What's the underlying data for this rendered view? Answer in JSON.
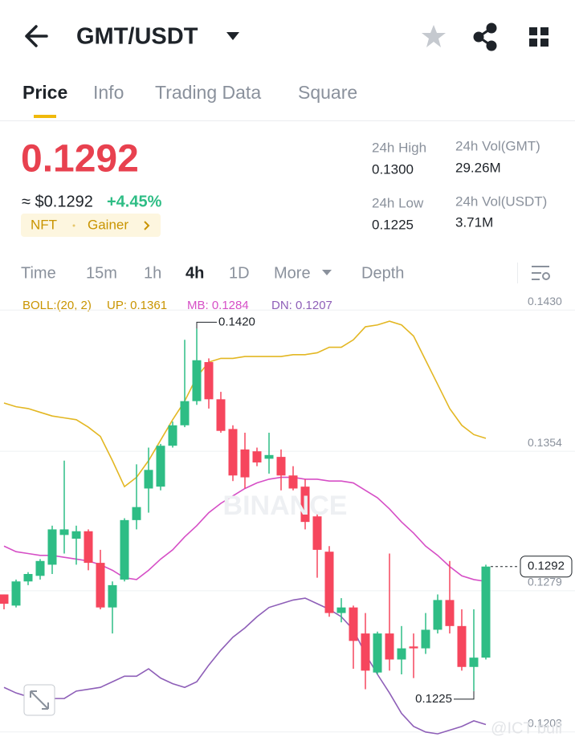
{
  "header": {
    "pair": "GMT/USDT"
  },
  "tabs": [
    "Price",
    "Info",
    "Trading Data",
    "Square"
  ],
  "ticker": {
    "price": "0.1292",
    "fiat": "≈ $0.1292",
    "change": "+4.45%",
    "tags": [
      "NFT",
      "Gainer"
    ]
  },
  "stats": [
    {
      "label": "24h High",
      "value": "0.1300"
    },
    {
      "label": "24h Vol(GMT)",
      "value": "29.26M"
    },
    {
      "label": "24h Low",
      "value": "0.1225"
    },
    {
      "label": "24h Vol(USDT)",
      "value": "3.71M"
    }
  ],
  "intervals": [
    "Time",
    "15m",
    "1h",
    "4h",
    "1D",
    "More",
    "Depth"
  ],
  "watermarks": [
    "BINANCE",
    "@ICT bull"
  ],
  "chart_data": {
    "type": "candlestick",
    "legend": [
      "BOLL:(20, 2)",
      "UP: 0.1361",
      "MB: 0.1284",
      "DN: 0.1207"
    ],
    "up_color": "#2ebd85",
    "down_color": "#f6465d",
    "open": [
      0.1277,
      0.1271,
      0.1284,
      0.1287,
      0.1293,
      0.1309,
      0.1307,
      0.1311,
      0.1294,
      0.127,
      0.1285,
      0.1317,
      0.1334,
      0.1335,
      0.1357,
      0.1368,
      0.1381,
      0.1402,
      0.1382,
      0.1366,
      0.1355,
      0.1354,
      0.135,
      0.1351,
      0.1341,
      0.1335,
      0.1319,
      0.13,
      0.1267,
      0.127,
      0.1256,
      0.1235,
      0.1256,
      0.1242,
      0.1249,
      0.1248,
      0.1258,
      0.1274,
      0.126,
      0.1238,
      0.1243
    ],
    "high": [
      0.1277,
      0.1285,
      0.1289,
      0.1296,
      0.1314,
      0.1349,
      0.1314,
      0.1312,
      0.1301,
      0.1284,
      0.1318,
      0.1347,
      0.1356,
      0.1358,
      0.137,
      0.1414,
      0.142,
      0.1404,
      0.1386,
      0.1368,
      0.1364,
      0.1356,
      0.1364,
      0.1355,
      0.1346,
      0.1339,
      0.1321,
      0.1303,
      0.1275,
      0.1271,
      0.1267,
      0.1257,
      0.1299,
      0.126,
      0.1256,
      0.1267,
      0.1277,
      0.1295,
      0.1269,
      0.1269,
      0.1293
    ],
    "low": [
      0.1269,
      0.127,
      0.1282,
      0.1285,
      0.1288,
      0.1299,
      0.1293,
      0.129,
      0.1269,
      0.1256,
      0.1284,
      0.1312,
      0.1321,
      0.1333,
      0.1356,
      0.1367,
      0.1379,
      0.1377,
      0.1364,
      0.1338,
      0.1334,
      0.1346,
      0.1342,
      0.1333,
      0.1333,
      0.1312,
      0.1286,
      0.1265,
      0.1262,
      0.1237,
      0.1226,
      0.1234,
      0.1236,
      0.1234,
      0.1232,
      0.1245,
      0.1256,
      0.1256,
      0.1236,
      0.1225,
      0.1242
    ],
    "close": [
      0.1272,
      0.1284,
      0.1288,
      0.1295,
      0.1312,
      0.1312,
      0.1311,
      0.1294,
      0.127,
      0.1282,
      0.1317,
      0.1324,
      0.1344,
      0.1357,
      0.1368,
      0.1381,
      0.1403,
      0.1382,
      0.1365,
      0.1341,
      0.134,
      0.1348,
      0.1352,
      0.1341,
      0.1334,
      0.1316,
      0.1301,
      0.1267,
      0.127,
      0.1252,
      0.1236,
      0.1256,
      0.1242,
      0.1248,
      0.1248,
      0.1258,
      0.1274,
      0.126,
      0.1238,
      0.1243,
      0.1292
    ],
    "series": [
      {
        "color": "#e3b723",
        "values": [
          0.138,
          0.1378,
          0.1377,
          0.1375,
          0.1373,
          0.1372,
          0.1371,
          0.1367,
          0.1362,
          0.1349,
          0.1335,
          0.134,
          0.1349,
          0.136,
          0.1371,
          0.1381,
          0.1394,
          0.1402,
          0.1404,
          0.1404,
          0.1405,
          0.1405,
          0.1405,
          0.1405,
          0.1406,
          0.1406,
          0.1407,
          0.141,
          0.141,
          0.1414,
          0.1421,
          0.1422,
          0.1424,
          0.1422,
          0.1416,
          0.1403,
          0.139,
          0.1377,
          0.1368,
          0.1363,
          0.1361
        ]
      },
      {
        "color": "#d64fc6",
        "values": [
          0.1303,
          0.13,
          0.1299,
          0.1298,
          0.1298,
          0.1297,
          0.1296,
          0.1295,
          0.1293,
          0.129,
          0.1286,
          0.1285,
          0.129,
          0.1296,
          0.1301,
          0.1308,
          0.1314,
          0.1321,
          0.1326,
          0.133,
          0.1334,
          0.1337,
          0.1339,
          0.134,
          0.134,
          0.1339,
          0.1339,
          0.1338,
          0.1338,
          0.1337,
          0.1333,
          0.1329,
          0.1323,
          0.1316,
          0.131,
          0.1303,
          0.1298,
          0.1292,
          0.1287,
          0.1285,
          0.1284
        ]
      },
      {
        "color": "#8e5fb8",
        "values": [
          0.1227,
          0.1224,
          0.1222,
          0.1221,
          0.1221,
          0.1221,
          0.1225,
          0.1226,
          0.1227,
          0.123,
          0.1233,
          0.1233,
          0.1237,
          0.1232,
          0.1229,
          0.1227,
          0.123,
          0.1239,
          0.1247,
          0.1254,
          0.1259,
          0.1265,
          0.127,
          0.1272,
          0.1274,
          0.1275,
          0.1272,
          0.1269,
          0.1265,
          0.1258,
          0.1245,
          0.1234,
          0.1224,
          0.1213,
          0.1206,
          0.1203,
          0.1202,
          0.1204,
          0.1206,
          0.1209,
          0.1207
        ]
      }
    ],
    "ylim": [
      0.1196,
      0.1437
    ],
    "yticks": [
      {
        "value": 0.143,
        "label": "0.1430"
      },
      0.1354,
      0.1279,
      0.1203
    ],
    "grid": true,
    "last_price": 0.1292,
    "high_label": {
      "value": 0.142,
      "label": "0.1420"
    },
    "low_label": 0.1225
  }
}
